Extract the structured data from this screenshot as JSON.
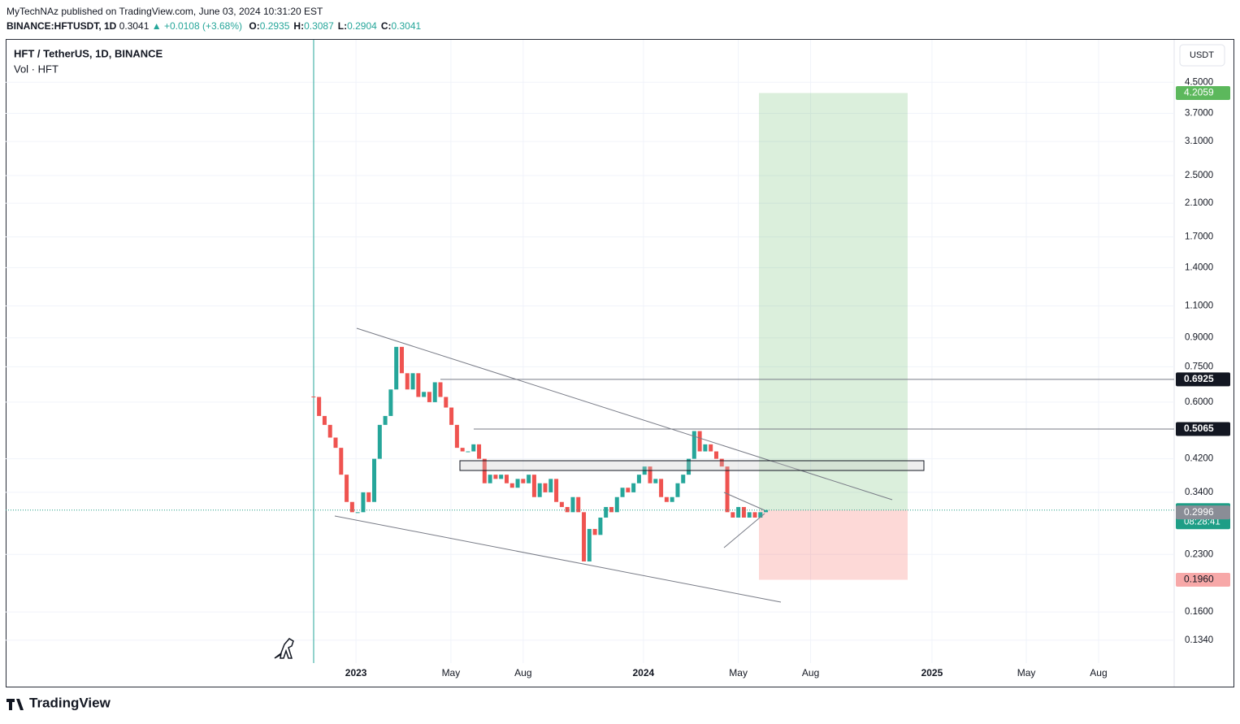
{
  "header": {
    "author_line": "MyTechNAz published on TradingView.com, June 03, 2024 10:31:20 EST",
    "symbol": "BINANCE:HFTUSDT, 1D",
    "close": "0.3041",
    "change": "▲ +0.0108 (+3.68%)",
    "ohlc": [
      {
        "label": "O:",
        "value": "0.2935"
      },
      {
        "label": "H:",
        "value": "0.3087"
      },
      {
        "label": "L:",
        "value": "0.2904"
      },
      {
        "label": "C:",
        "value": "0.3041"
      }
    ]
  },
  "legend": {
    "title": "HFT / TetherUS, 1D, BINANCE",
    "volume": "Vol · HFT"
  },
  "currency_button": "USDT",
  "brand": "TradingView",
  "chart_data": {
    "type": "candlestick",
    "log_scale": true,
    "grid": true,
    "color_up": "#26a69a",
    "color_down": "#ef5350",
    "values": [
      0.62,
      0.55,
      0.52,
      0.48,
      0.45,
      0.38,
      0.32,
      0.3,
      0.3,
      0.34,
      0.32,
      0.42,
      0.52,
      0.55,
      0.65,
      0.85,
      0.72,
      0.65,
      0.72,
      0.62,
      0.64,
      0.6,
      0.68,
      0.62,
      0.58,
      0.52,
      0.45,
      0.44,
      0.44,
      0.46,
      0.42,
      0.36,
      0.38,
      0.37,
      0.38,
      0.36,
      0.35,
      0.37,
      0.36,
      0.38,
      0.33,
      0.36,
      0.34,
      0.37,
      0.32,
      0.31,
      0.3,
      0.33,
      0.3,
      0.22,
      0.27,
      0.26,
      0.29,
      0.31,
      0.3,
      0.33,
      0.35,
      0.34,
      0.36,
      0.38,
      0.4,
      0.36,
      0.37,
      0.33,
      0.32,
      0.33,
      0.36,
      0.38,
      0.42,
      0.5,
      0.44,
      0.46,
      0.44,
      0.42,
      0.4,
      0.3,
      0.29,
      0.31,
      0.29,
      0.3,
      0.29,
      0.3,
      0.3041
    ],
    "ylim": [
      0.116,
      5.91
    ],
    "yticks": [
      {
        "value": 4.5,
        "label": "4.5000"
      },
      {
        "value": 3.7,
        "label": "3.7000"
      },
      {
        "value": 3.1,
        "label": "3.1000"
      },
      {
        "value": 2.5,
        "label": "2.5000"
      },
      {
        "value": 2.1,
        "label": "2.1000"
      },
      {
        "value": 1.7,
        "label": "1.7000"
      },
      {
        "value": 1.4,
        "label": "1.4000"
      },
      {
        "value": 1.1,
        "label": "1.1000"
      },
      {
        "value": 0.9,
        "label": "0.9000"
      },
      {
        "value": 0.75,
        "label": "0.7500"
      },
      {
        "value": 0.6,
        "label": "0.6000"
      },
      {
        "value": 0.42,
        "label": "0.4200"
      },
      {
        "value": 0.34,
        "label": "0.3400"
      },
      {
        "value": 0.23,
        "label": "0.2300"
      },
      {
        "value": 0.16,
        "label": "0.1600"
      },
      {
        "value": 0.134,
        "label": "0.1340"
      }
    ],
    "xlim": [
      -55.8,
      156
    ],
    "xticks": [
      {
        "value": 7.7,
        "label": "2023"
      },
      {
        "value": 24.9,
        "label": "May"
      },
      {
        "value": 38.0,
        "label": "Aug"
      },
      {
        "value": 59.8,
        "label": "2024"
      },
      {
        "value": 77.0,
        "label": "May"
      },
      {
        "value": 90.1,
        "label": "Aug"
      },
      {
        "value": 112.1,
        "label": "2025"
      },
      {
        "value": 129.2,
        "label": "May"
      },
      {
        "value": 142.3,
        "label": "Aug"
      }
    ],
    "levels": [
      {
        "value": 4.2059,
        "color": "#5cb85c",
        "text_color": "#ffffff"
      },
      {
        "value": 0.6925,
        "color": "#131722",
        "text_color": "#ffffff",
        "line": true
      },
      {
        "value": 0.5065,
        "color": "#131722",
        "text_color": "#ffffff",
        "line": true
      },
      {
        "value": 0.3041,
        "color": "#1e9e86",
        "text_color": "#ffffff",
        "countdown": "08:28:41"
      },
      {
        "value": 0.2996,
        "color": "#8a8d96",
        "text_color": "#ffffff"
      },
      {
        "value": 0.196,
        "label": "0.1960",
        "color": "#f7a8a8",
        "text_color": "#131722"
      }
    ]
  }
}
